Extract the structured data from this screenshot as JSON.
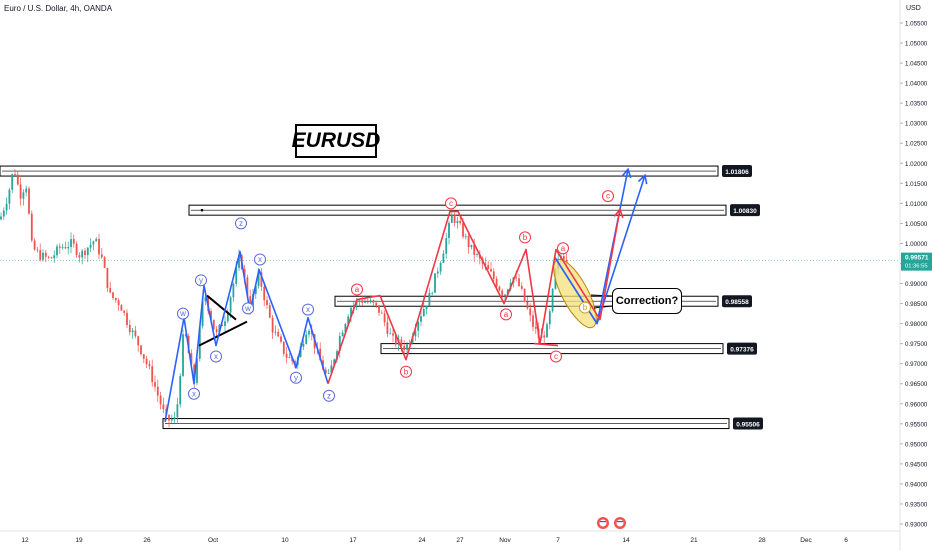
{
  "header": {
    "instrument": "Euro / U.S. Dollar, 4h, OANDA",
    "currency": "USD"
  },
  "title": "EURUSD",
  "annotation": "Correction?",
  "colors": {
    "up": "#26a69a",
    "down": "#ef5350",
    "wave_blue": "#2962ff",
    "wave_red": "#f23645",
    "circle_blue": "#5b6bd9",
    "circle_red": "#f23645",
    "ellipse_fill": "#f5e07a",
    "ellipse_stroke": "#b8860b"
  },
  "chart_data": {
    "type": "candlestick",
    "y_axis": {
      "min": 0.925,
      "max": 1.06,
      "ticks": [
        "1.05500",
        "1.05000",
        "1.04500",
        "1.04000",
        "1.03500",
        "1.03000",
        "1.02500",
        "1.02000",
        "1.01500",
        "1.01000",
        "1.00500",
        "1.00000",
        "0.99500",
        "0.99000",
        "0.98500",
        "0.98000",
        "0.97500",
        "0.97000",
        "0.96500",
        "0.96000",
        "0.95500",
        "0.95000",
        "0.94500",
        "0.94000",
        "0.93500",
        "0.93000"
      ]
    },
    "x_axis": {
      "ticks": [
        "12",
        "19",
        "26",
        "Oct",
        "10",
        "17",
        "24",
        "27",
        "Nov",
        "7",
        "14",
        "21",
        "28",
        "Dec",
        "6"
      ]
    },
    "current_price": {
      "value": "0.99571",
      "countdown": "01:36:55"
    },
    "levels": [
      {
        "label": "1.01806",
        "value": 1.01806
      },
      {
        "label": "1.00830",
        "value": 1.0083
      },
      {
        "label": "0.98558",
        "value": 0.98558
      },
      {
        "label": "0.97376",
        "value": 0.97376
      },
      {
        "label": "0.95506",
        "value": 0.95506
      }
    ],
    "blue_waves": [
      [
        [
          165,
          0.9555
        ],
        [
          184,
          0.9815
        ],
        [
          194,
          0.965
        ],
        [
          204,
          0.9895
        ],
        [
          216,
          0.9745
        ],
        [
          240,
          0.998
        ],
        [
          250,
          0.983
        ],
        [
          259,
          0.9935
        ],
        [
          296,
          0.969
        ],
        [
          308,
          0.9815
        ],
        [
          328,
          0.965
        ]
      ],
      [
        [
          555,
          0.9965
        ],
        [
          597,
          0.98
        ],
        [
          628,
          1.0185
        ]
      ],
      [
        [
          555,
          0.9965
        ],
        [
          597,
          0.98
        ],
        [
          645,
          1.017
        ]
      ]
    ],
    "red_waves": [
      [
        [
          328,
          0.965
        ],
        [
          357,
          0.986
        ],
        [
          380,
          0.987
        ],
        [
          406,
          0.971
        ],
        [
          450,
          1.008
        ],
        [
          458,
          1.008
        ],
        [
          504,
          0.985
        ],
        [
          526,
          0.9985
        ],
        [
          540,
          0.975
        ],
        [
          556,
          0.9985
        ],
        [
          600,
          0.981
        ],
        [
          620,
          1.0085
        ]
      ]
    ],
    "red_lines": [
      [
        [
          534,
          0.975
        ],
        [
          558,
          0.9745
        ]
      ]
    ],
    "wave_labels": [
      {
        "text": "w",
        "x": 183,
        "y": 0.9825,
        "color": "blue"
      },
      {
        "text": "x",
        "x": 194,
        "y": 0.9625,
        "color": "blue"
      },
      {
        "text": "y",
        "x": 201,
        "y": 0.9908,
        "color": "blue"
      },
      {
        "text": "x",
        "x": 216,
        "y": 0.9718,
        "color": "blue"
      },
      {
        "text": "w",
        "x": 248,
        "y": 0.9838,
        "color": "blue"
      },
      {
        "text": "z",
        "x": 241,
        "y": 1.005,
        "color": "blue"
      },
      {
        "text": "x",
        "x": 260,
        "y": 0.996,
        "color": "blue"
      },
      {
        "text": "y",
        "x": 296,
        "y": 0.9665,
        "color": "blue"
      },
      {
        "text": "x",
        "x": 308,
        "y": 0.9835,
        "color": "blue"
      },
      {
        "text": "z",
        "x": 329,
        "y": 0.962,
        "color": "blue"
      },
      {
        "text": "a",
        "x": 357,
        "y": 0.9885,
        "color": "red"
      },
      {
        "text": "b",
        "x": 406,
        "y": 0.968,
        "color": "red"
      },
      {
        "text": "c",
        "x": 451,
        "y": 1.01,
        "color": "red"
      },
      {
        "text": "b",
        "x": 525,
        "y": 1.0015,
        "color": "red"
      },
      {
        "text": "a",
        "x": 506,
        "y": 0.9823,
        "color": "red"
      },
      {
        "text": "a",
        "x": 563,
        "y": 0.9988,
        "color": "red"
      },
      {
        "text": "c",
        "x": 556,
        "y": 0.9718,
        "color": "red"
      },
      {
        "text": "b",
        "x": 585,
        "y": 0.984,
        "color": "yellow"
      },
      {
        "text": "c",
        "x": 608,
        "y": 1.0118,
        "color": "red"
      }
    ]
  }
}
